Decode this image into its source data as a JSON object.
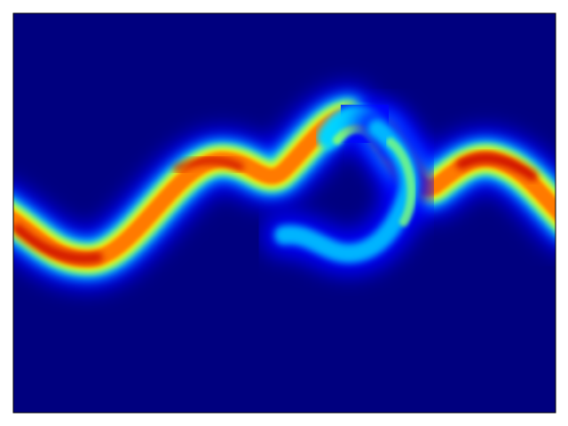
{
  "chart_data": {
    "type": "heatmap",
    "colormap": "jet",
    "title": "",
    "xlabel": "",
    "ylabel": "",
    "axes_visible": false,
    "grid": false,
    "background_color": "#00007f",
    "colors": {
      "low": "#00007f",
      "blue": "#0000ff",
      "cyan": "#00d4ff",
      "green": "#7dff7a",
      "yellow": "#ffea00",
      "orange": "#ff7a00",
      "high": "#c80000"
    }
  }
}
